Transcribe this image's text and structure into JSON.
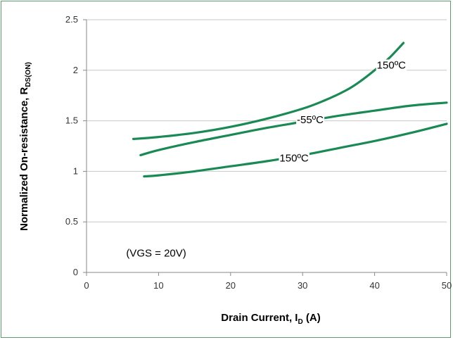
{
  "chart_data": {
    "type": "line",
    "title": "",
    "xlabel": {
      "main": "Drain Current, I",
      "sub": "D",
      "tail": " (A)"
    },
    "ylabel": {
      "main": "Normalized On-resistance, R",
      "sub": "DS(ON)"
    },
    "xlim": [
      0,
      50
    ],
    "ylim": [
      0,
      2.5
    ],
    "xticks": [
      0,
      10,
      20,
      30,
      40,
      50
    ],
    "yticks": [
      0,
      0.5,
      1,
      1.5,
      2,
      2.5
    ],
    "ytick_labels": [
      "0",
      "0.5",
      "1",
      "1.5",
      "2",
      "2.5"
    ],
    "grid": "horizontal",
    "line_color": "#1a8a55",
    "series": [
      {
        "name": "150ºC",
        "x": [
          6.5,
          10,
          15,
          20,
          25,
          30,
          33,
          36,
          38,
          40,
          42,
          44
        ],
        "y": [
          1.32,
          1.34,
          1.38,
          1.44,
          1.52,
          1.62,
          1.7,
          1.8,
          1.89,
          2.0,
          2.12,
          2.27
        ]
      },
      {
        "name": "-55ºC",
        "x": [
          7.5,
          10,
          15,
          20,
          25,
          30,
          35,
          40,
          45,
          50
        ],
        "y": [
          1.16,
          1.21,
          1.29,
          1.36,
          1.43,
          1.49,
          1.55,
          1.6,
          1.65,
          1.68
        ]
      },
      {
        "name": "150ºC",
        "x": [
          8,
          10,
          15,
          20,
          25,
          30,
          35,
          40,
          45,
          50
        ],
        "y": [
          0.95,
          0.96,
          1.0,
          1.05,
          1.1,
          1.16,
          1.23,
          1.3,
          1.38,
          1.47
        ]
      }
    ],
    "annotations": [
      {
        "text": "150ºC",
        "x": 40.3,
        "y": 2.05
      },
      {
        "text": "-55ºC",
        "x": 29.2,
        "y": 1.51
      },
      {
        "text": "150ºC",
        "x": 26.8,
        "y": 1.13
      },
      {
        "text": "(VGS = 20V)",
        "x": 5.5,
        "y": 0.19
      }
    ]
  }
}
